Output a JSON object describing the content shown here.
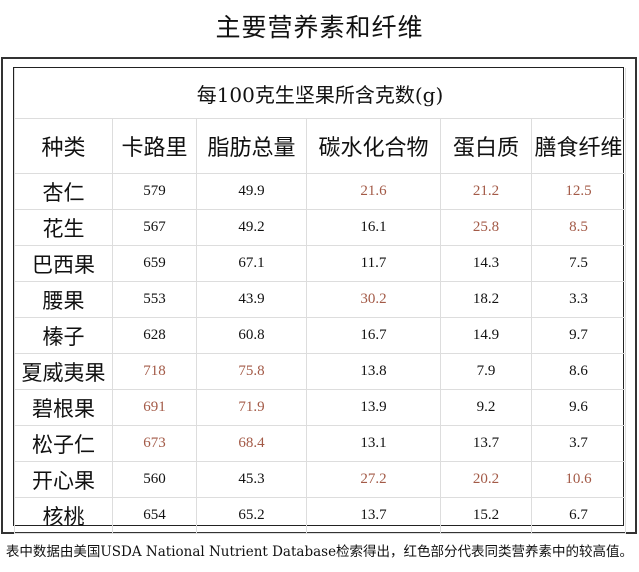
{
  "title": "主要营养素和纤维",
  "table": {
    "caption": "每100克生坚果所含克数(g)",
    "columns": [
      "种类",
      "卡路里",
      "脂肪总量",
      "碳水化合物",
      "蛋白质",
      "膳食纤维"
    ],
    "highlight_color": "#a35a47",
    "rows": [
      {
        "name": "杏仁",
        "values": [
          "579",
          "49.9",
          "21.6",
          "21.2",
          "12.5"
        ],
        "highlight": [
          false,
          false,
          true,
          true,
          true
        ]
      },
      {
        "name": "花生",
        "values": [
          "567",
          "49.2",
          "16.1",
          "25.8",
          "8.5"
        ],
        "highlight": [
          false,
          false,
          false,
          true,
          true
        ]
      },
      {
        "name": "巴西果",
        "values": [
          "659",
          "67.1",
          "11.7",
          "14.3",
          "7.5"
        ],
        "highlight": [
          false,
          false,
          false,
          false,
          false
        ]
      },
      {
        "name": "腰果",
        "values": [
          "553",
          "43.9",
          "30.2",
          "18.2",
          "3.3"
        ],
        "highlight": [
          false,
          false,
          true,
          false,
          false
        ]
      },
      {
        "name": "榛子",
        "values": [
          "628",
          "60.8",
          "16.7",
          "14.9",
          "9.7"
        ],
        "highlight": [
          false,
          false,
          false,
          false,
          false
        ]
      },
      {
        "name": "夏威夷果",
        "values": [
          "718",
          "75.8",
          "13.8",
          "7.9",
          "8.6"
        ],
        "highlight": [
          true,
          true,
          false,
          false,
          false
        ]
      },
      {
        "name": "碧根果",
        "values": [
          "691",
          "71.9",
          "13.9",
          "9.2",
          "9.6"
        ],
        "highlight": [
          true,
          true,
          false,
          false,
          false
        ]
      },
      {
        "name": "松子仁",
        "values": [
          "673",
          "68.4",
          "13.1",
          "13.7",
          "3.7"
        ],
        "highlight": [
          true,
          true,
          false,
          false,
          false
        ]
      },
      {
        "name": "开心果",
        "values": [
          "560",
          "45.3",
          "27.2",
          "20.2",
          "10.6"
        ],
        "highlight": [
          false,
          false,
          true,
          true,
          true
        ]
      },
      {
        "name": "核桃",
        "values": [
          "654",
          "65.2",
          "13.7",
          "15.2",
          "6.7"
        ],
        "highlight": [
          false,
          false,
          false,
          false,
          false
        ]
      }
    ]
  },
  "footnote": "表中数据由美国USDA National Nutrient Database检索得出，红色部分代表同类营养素中的较高值。",
  "chart_data": {
    "type": "table",
    "title": "主要营养素和纤维",
    "subtitle": "每100克生坚果所含克数(g)",
    "columns": [
      "种类",
      "卡路里",
      "脂肪总量",
      "碳水化合物",
      "蛋白质",
      "膳食纤维"
    ],
    "categories": [
      "杏仁",
      "花生",
      "巴西果",
      "腰果",
      "榛子",
      "夏威夷果",
      "碧根果",
      "松子仁",
      "开心果",
      "核桃"
    ],
    "series": [
      {
        "name": "卡路里",
        "values": [
          579,
          567,
          659,
          553,
          628,
          718,
          691,
          673,
          560,
          654
        ]
      },
      {
        "name": "脂肪总量",
        "values": [
          49.9,
          49.2,
          67.1,
          43.9,
          60.8,
          75.8,
          71.9,
          68.4,
          45.3,
          65.2
        ]
      },
      {
        "name": "碳水化合物",
        "values": [
          21.6,
          16.1,
          11.7,
          30.2,
          16.7,
          13.8,
          13.9,
          13.1,
          27.2,
          13.7
        ]
      },
      {
        "name": "蛋白质",
        "values": [
          21.2,
          25.8,
          14.3,
          18.2,
          14.9,
          7.9,
          9.2,
          13.7,
          20.2,
          15.2
        ]
      },
      {
        "name": "膳食纤维",
        "values": [
          12.5,
          8.5,
          7.5,
          3.3,
          9.7,
          8.6,
          9.6,
          3.7,
          10.6,
          6.7
        ]
      }
    ],
    "annotations": [
      "表中数据由美国USDA National Nutrient Database检索得出，红色部分代表同类营养素中的较高值。"
    ]
  }
}
